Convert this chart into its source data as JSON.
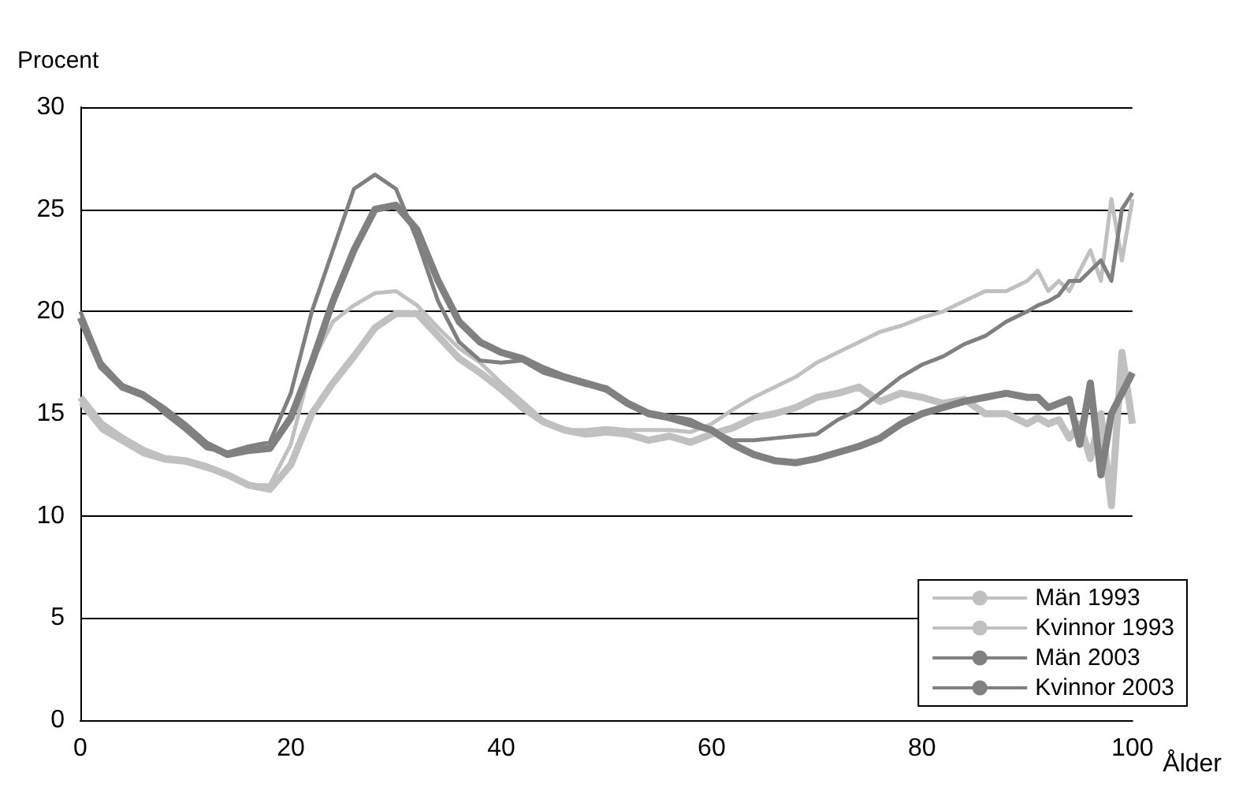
{
  "chart_data": {
    "type": "line",
    "xlabel": "Ålder",
    "ylabel": "Procent",
    "x": [
      0,
      2,
      4,
      6,
      8,
      10,
      12,
      14,
      16,
      18,
      20,
      22,
      24,
      26,
      28,
      30,
      32,
      34,
      36,
      38,
      40,
      42,
      44,
      46,
      48,
      50,
      52,
      54,
      56,
      58,
      60,
      62,
      64,
      66,
      68,
      70,
      72,
      74,
      76,
      78,
      80,
      82,
      84,
      86,
      88,
      90,
      91,
      92,
      93,
      94,
      95,
      96,
      97,
      98,
      99,
      100
    ],
    "series": [
      {
        "name": "Män 1993",
        "color": "#c0c0c0",
        "values": [
          15.8,
          14.5,
          13.8,
          13.2,
          12.8,
          12.7,
          12.4,
          12,
          11.5,
          11.3,
          12.5,
          15,
          16.5,
          17.8,
          19.2,
          19.9,
          19.9,
          18.8,
          17.7,
          17,
          16.2,
          15.3,
          14.6,
          14.2,
          14,
          14.1,
          14,
          13.7,
          13.9,
          13.6,
          14,
          14.3,
          14.8,
          15,
          15.3,
          15.8,
          16,
          16.3,
          15.6,
          16,
          15.8,
          15.5,
          15.7,
          15,
          15,
          14.5,
          14.8,
          14.5,
          14.7,
          13.8,
          14.5,
          12.8,
          15,
          10.5,
          18,
          14.5
        ]
      },
      {
        "name": "Kvinnor 1993",
        "color": "#c0c0c0",
        "values": [
          15.5,
          14.2,
          13.6,
          13,
          12.7,
          12.6,
          12.3,
          12,
          11.5,
          11.5,
          13.5,
          17.5,
          19.5,
          20.3,
          20.9,
          21,
          20.3,
          19.2,
          18.2,
          17.5,
          16.5,
          15.6,
          14.7,
          14.2,
          14.2,
          14.3,
          14.2,
          14.2,
          14.2,
          14.1,
          14.5,
          15.2,
          15.8,
          16.3,
          16.8,
          17.5,
          18,
          18.5,
          19,
          19.3,
          19.7,
          20,
          20.5,
          21,
          21,
          21.5,
          22,
          21,
          21.5,
          21,
          22,
          23,
          21.5,
          25.5,
          22.5,
          25.5
        ]
      },
      {
        "name": "Män 2003",
        "color": "#808080",
        "values": [
          19.7,
          17.3,
          16.3,
          15.9,
          15.2,
          14.4,
          13.5,
          13,
          13.2,
          13.3,
          14.8,
          17.5,
          20.5,
          23,
          25,
          25.2,
          24,
          21.5,
          19.5,
          18.5,
          18,
          17.7,
          17.2,
          16.8,
          16.5,
          16.2,
          15.5,
          15,
          14.8,
          14.5,
          14.2,
          13.5,
          13,
          12.7,
          12.6,
          12.8,
          13.1,
          13.4,
          13.8,
          14.5,
          15,
          15.3,
          15.6,
          15.8,
          16,
          15.8,
          15.8,
          15.3,
          15.5,
          15.7,
          13.5,
          16.5,
          12,
          15,
          16,
          17
        ]
      },
      {
        "name": "Kvinnor 2003",
        "color": "#808080",
        "values": [
          20,
          17.5,
          16.4,
          16,
          15,
          14.2,
          13.3,
          13.1,
          13.4,
          13.6,
          16,
          20,
          23,
          26,
          26.7,
          26,
          23.5,
          20.5,
          18.5,
          17.6,
          17.5,
          17.6,
          17,
          16.7,
          16.4,
          16.3,
          15.6,
          15.1,
          14.9,
          14.7,
          14.2,
          13.7,
          13.7,
          13.8,
          13.9,
          14,
          14.7,
          15.2,
          16,
          16.8,
          17.4,
          17.8,
          18.4,
          18.8,
          19.5,
          20,
          20.3,
          20.5,
          20.8,
          21.5,
          21.5,
          22,
          22.5,
          21.5,
          25,
          25.8
        ]
      }
    ],
    "xlim": [
      0,
      100
    ],
    "xticks": [
      0,
      20,
      40,
      60,
      80,
      100
    ],
    "ylim": [
      0,
      30
    ],
    "yticks": [
      0,
      5,
      10,
      15,
      20,
      25,
      30
    ],
    "grid": "y",
    "legend": "bottom right"
  }
}
